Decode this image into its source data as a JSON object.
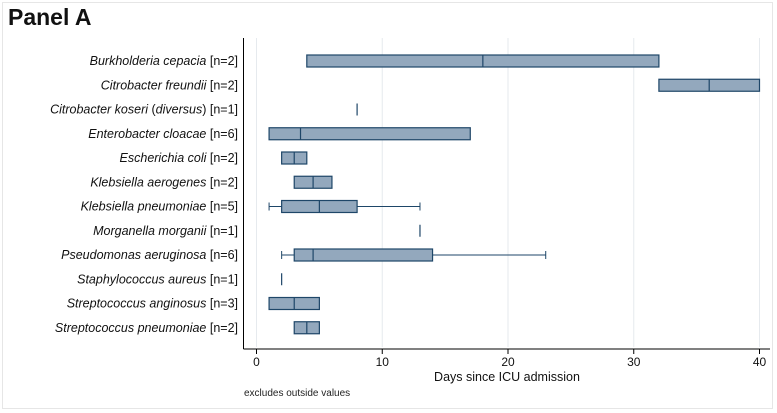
{
  "panel_title": "Panel A",
  "footnote": "excludes outside values",
  "colors": {
    "box_fill": "#93a8bd",
    "box_stroke": "#1e4668",
    "grid": "#e6eaee",
    "axis": "#000000"
  },
  "chart_data": {
    "type": "box",
    "title": "Panel A",
    "xlabel": "Days since ICU admission",
    "ylabel": "",
    "xlim": [
      0,
      40
    ],
    "xticks": [
      0,
      10,
      20,
      30,
      40
    ],
    "grid": true,
    "legend": "none",
    "note": "excludes outside values",
    "series": [
      {
        "organism": "Burkholderia cepacia",
        "n": "[n=2]",
        "whisker_low": 4,
        "q1": 4,
        "median": 18,
        "q3": 32,
        "whisker_high": 32
      },
      {
        "organism": "Citrobacter freundii",
        "n": "[n=2]",
        "whisker_low": 32,
        "q1": 32,
        "median": 36,
        "q3": 40,
        "whisker_high": 40
      },
      {
        "organism": "Citrobacter koseri",
        "organism_suffix": " (diversus)",
        "n": "[n=1]",
        "whisker_low": 8,
        "q1": 8,
        "median": 8,
        "q3": 8,
        "whisker_high": 8
      },
      {
        "organism": "Enterobacter cloacae",
        "n": "[n=6]",
        "whisker_low": 1,
        "q1": 1,
        "median": 3.5,
        "q3": 17,
        "whisker_high": 17
      },
      {
        "organism": "Escherichia coli",
        "n": "[n=2]",
        "whisker_low": 2,
        "q1": 2,
        "median": 3,
        "q3": 4,
        "whisker_high": 4
      },
      {
        "organism": "Klebsiella aerogenes",
        "n": "[n=2]",
        "whisker_low": 3,
        "q1": 3,
        "median": 4.5,
        "q3": 6,
        "whisker_high": 6
      },
      {
        "organism": "Klebsiella pneumoniae",
        "n": "[n=5]",
        "whisker_low": 1,
        "q1": 2,
        "median": 5,
        "q3": 8,
        "whisker_high": 13
      },
      {
        "organism": "Morganella morganii",
        "n": "[n=1]",
        "whisker_low": 13,
        "q1": 13,
        "median": 13,
        "q3": 13,
        "whisker_high": 13
      },
      {
        "organism": "Pseudomonas aeruginosa",
        "n": "[n=6]",
        "whisker_low": 2,
        "q1": 3,
        "median": 4.5,
        "q3": 14,
        "whisker_high": 23
      },
      {
        "organism": "Staphylococcus aureus",
        "n": "[n=1]",
        "whisker_low": 2,
        "q1": 2,
        "median": 2,
        "q3": 2,
        "whisker_high": 2
      },
      {
        "organism": "Streptococcus anginosus",
        "n": "[n=3]",
        "whisker_low": 1,
        "q1": 1,
        "median": 3,
        "q3": 5,
        "whisker_high": 5
      },
      {
        "organism": "Streptococcus pneumoniae",
        "n": "[n=2]",
        "whisker_low": 3,
        "q1": 3,
        "median": 4,
        "q3": 5,
        "whisker_high": 5
      }
    ]
  }
}
